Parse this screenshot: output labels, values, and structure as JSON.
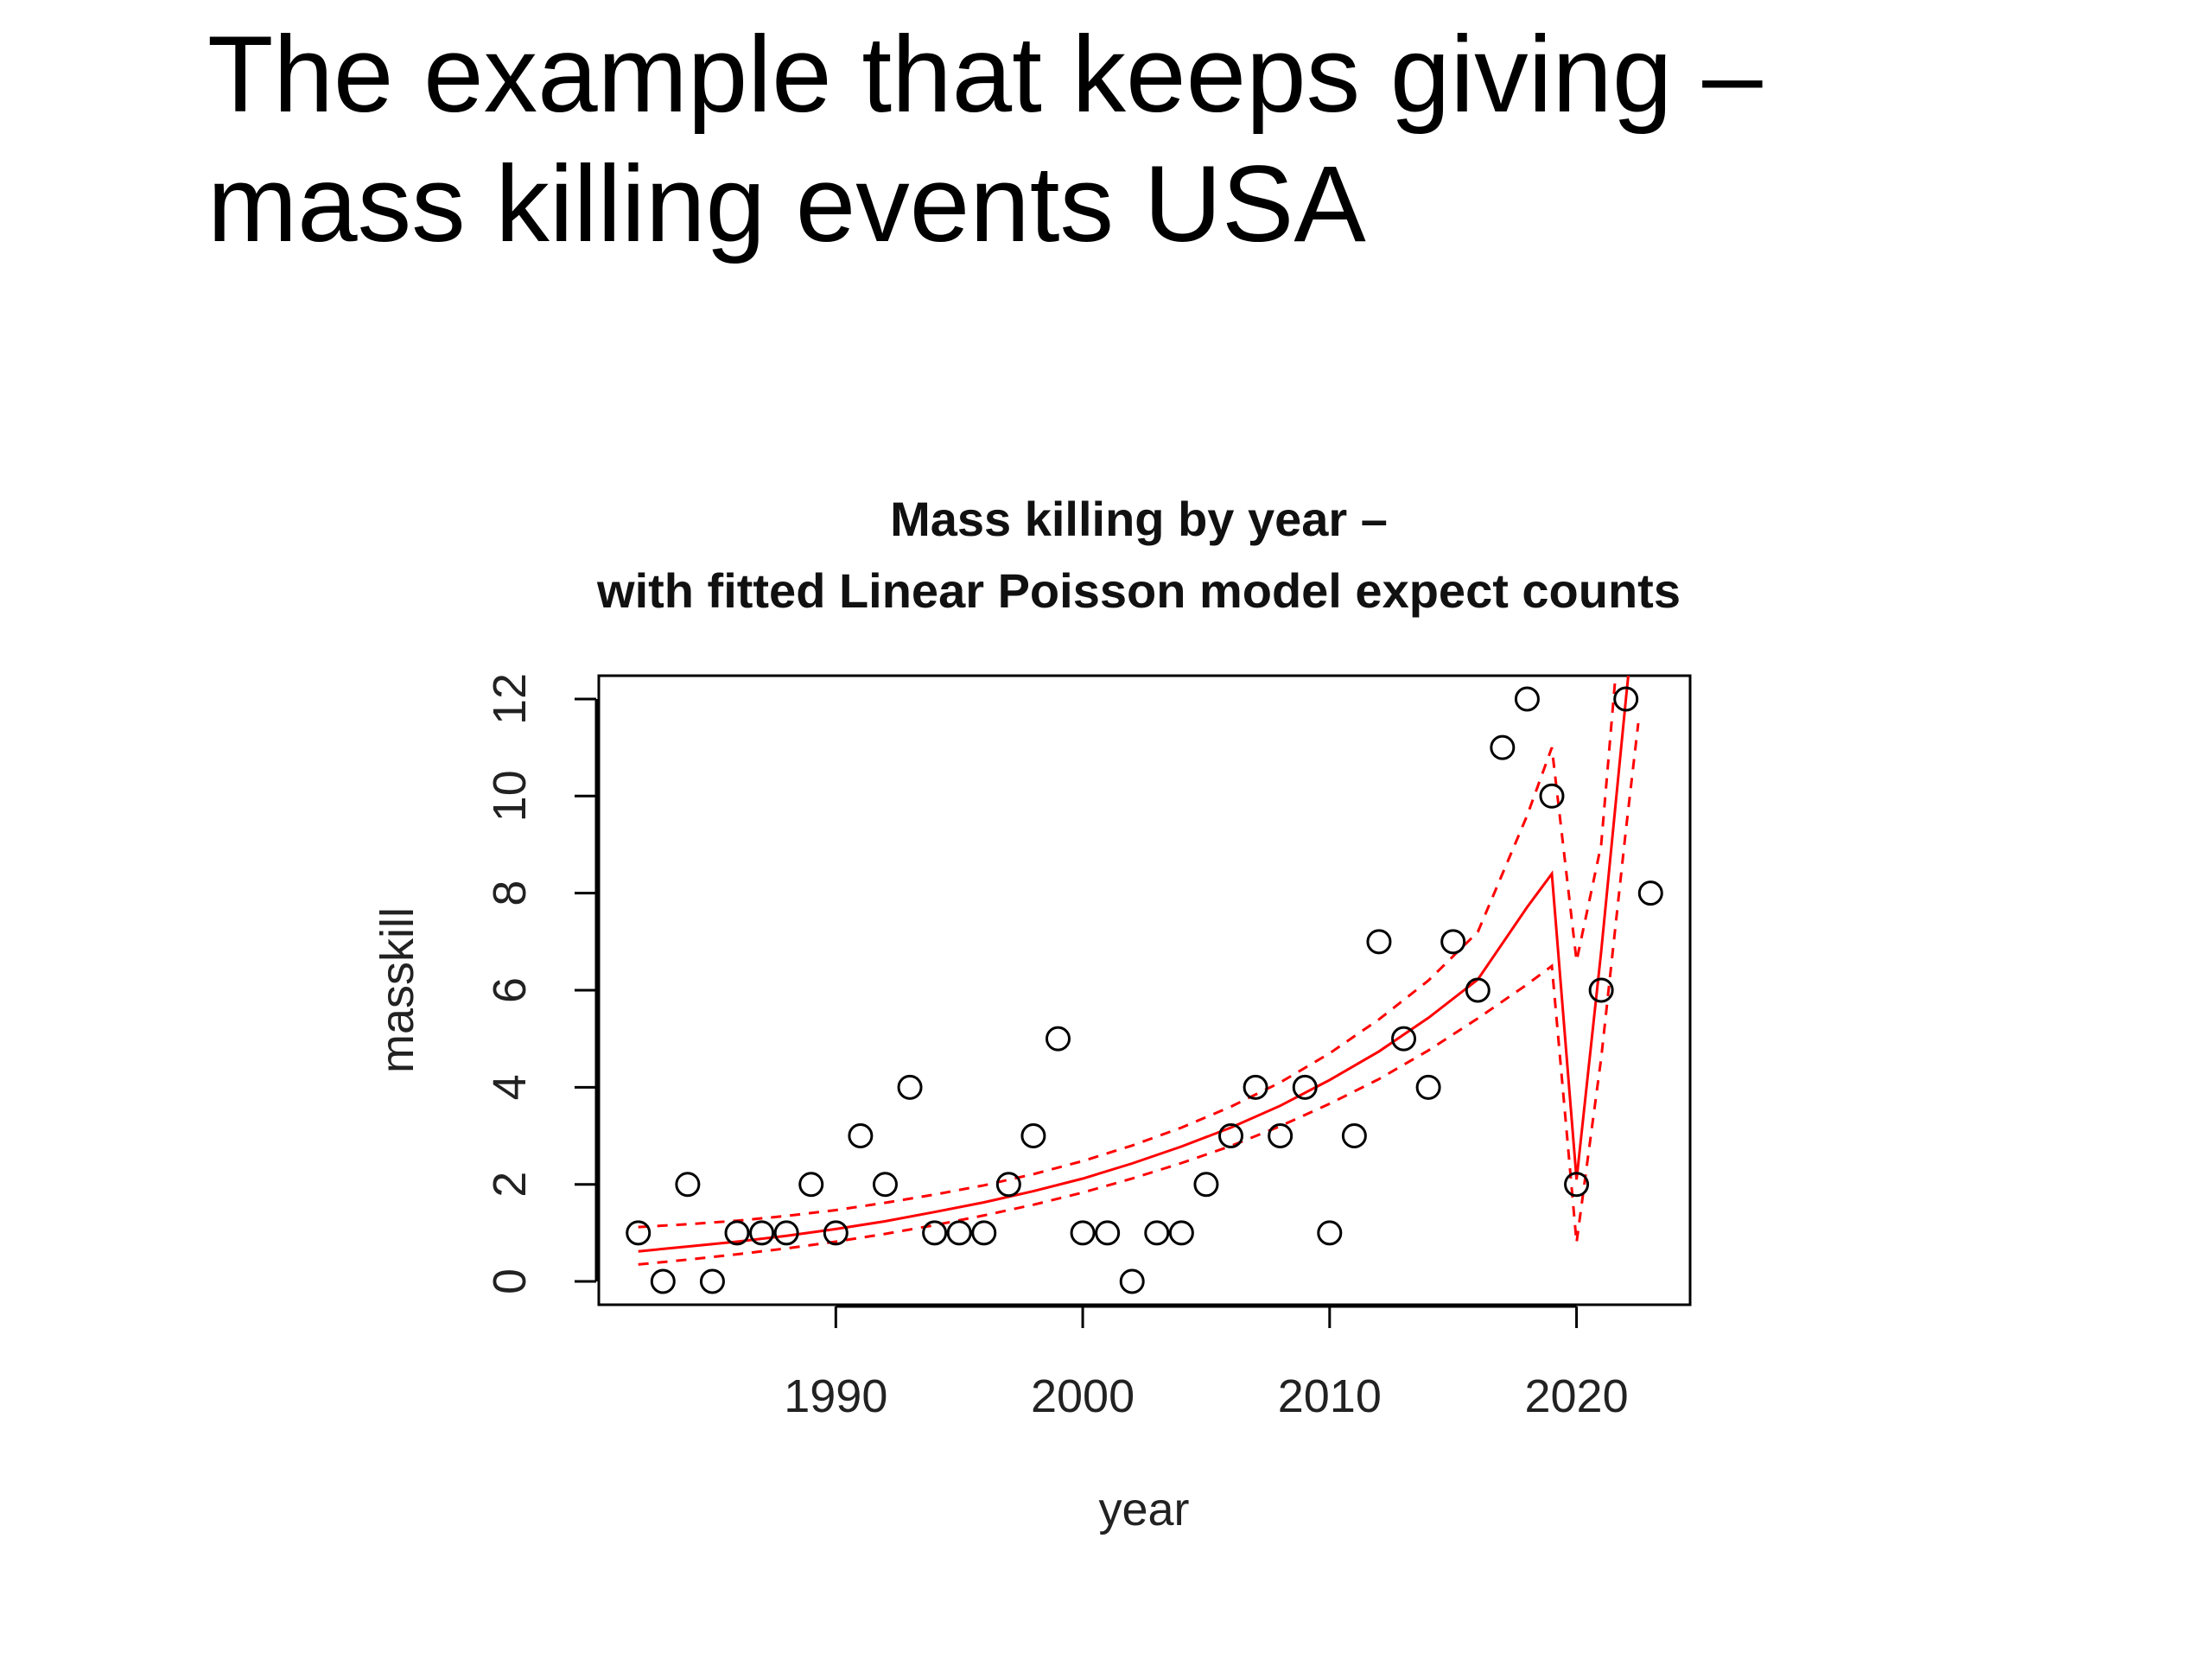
{
  "slide": {
    "title_line1": "The example that keeps giving –",
    "title_line2": "mass killing events USA"
  },
  "chart_data": {
    "type": "scatter",
    "title_line1": "Mass killing by year –",
    "title_line2": "with fitted Linear Poisson model expect counts",
    "xlabel": "year",
    "ylabel": "masskill",
    "xlim": [
      1980.4,
      2024.6
    ],
    "ylim": [
      -0.48,
      12.48
    ],
    "x_ticks": [
      1990,
      2000,
      2010,
      2020
    ],
    "y_ticks": [
      0,
      2,
      4,
      6,
      8,
      10,
      12
    ],
    "grid": false,
    "legend": "none",
    "points_color": "#000000",
    "fit_color": "#ff0000",
    "points": {
      "x": [
        1982,
        1983,
        1984,
        1985,
        1986,
        1987,
        1988,
        1989,
        1990,
        1991,
        1992,
        1993,
        1994,
        1995,
        1996,
        1997,
        1998,
        1999,
        2000,
        2001,
        2002,
        2003,
        2004,
        2005,
        2006,
        2007,
        2008,
        2009,
        2010,
        2011,
        2012,
        2013,
        2014,
        2015,
        2016,
        2017,
        2018,
        2019,
        2020,
        2021,
        2022,
        2023
      ],
      "y": [
        1,
        0,
        2,
        0,
        1,
        1,
        1,
        2,
        1,
        3,
        2,
        4,
        1,
        1,
        1,
        2,
        3,
        5,
        1,
        1,
        0,
        1,
        1,
        2,
        3,
        4,
        3,
        4,
        1,
        3,
        7,
        5,
        4,
        7,
        6,
        11,
        12,
        10,
        2,
        6,
        12,
        8
      ]
    },
    "fit": {
      "x": [
        1982,
        1984,
        1986,
        1988,
        1990,
        1992,
        1994,
        1996,
        1998,
        2000,
        2002,
        2004,
        2006,
        2008,
        2010,
        2012,
        2014,
        2016,
        2018,
        2019,
        2020,
        2021,
        2022,
        2022.5
      ],
      "expected": [
        0.62,
        0.72,
        0.82,
        0.94,
        1.08,
        1.24,
        1.43,
        1.63,
        1.86,
        2.12,
        2.43,
        2.78,
        3.17,
        3.62,
        4.15,
        4.74,
        5.43,
        6.22,
        7.71,
        8.4,
        2.1,
        6.8,
        12.0,
        14.5
      ],
      "lower": [
        0.35,
        0.45,
        0.56,
        0.68,
        0.82,
        0.98,
        1.16,
        1.36,
        1.58,
        1.83,
        2.12,
        2.44,
        2.79,
        3.2,
        3.66,
        4.17,
        4.76,
        5.42,
        6.12,
        6.5,
        0.8,
        4.6,
        9.3,
        11.5
      ],
      "upper": [
        1.12,
        1.18,
        1.25,
        1.35,
        1.47,
        1.62,
        1.79,
        1.98,
        2.21,
        2.48,
        2.8,
        3.17,
        3.6,
        4.1,
        4.7,
        5.4,
        6.2,
        7.2,
        9.6,
        11.0,
        6.6,
        9.0,
        15.0,
        17.5
      ]
    }
  }
}
